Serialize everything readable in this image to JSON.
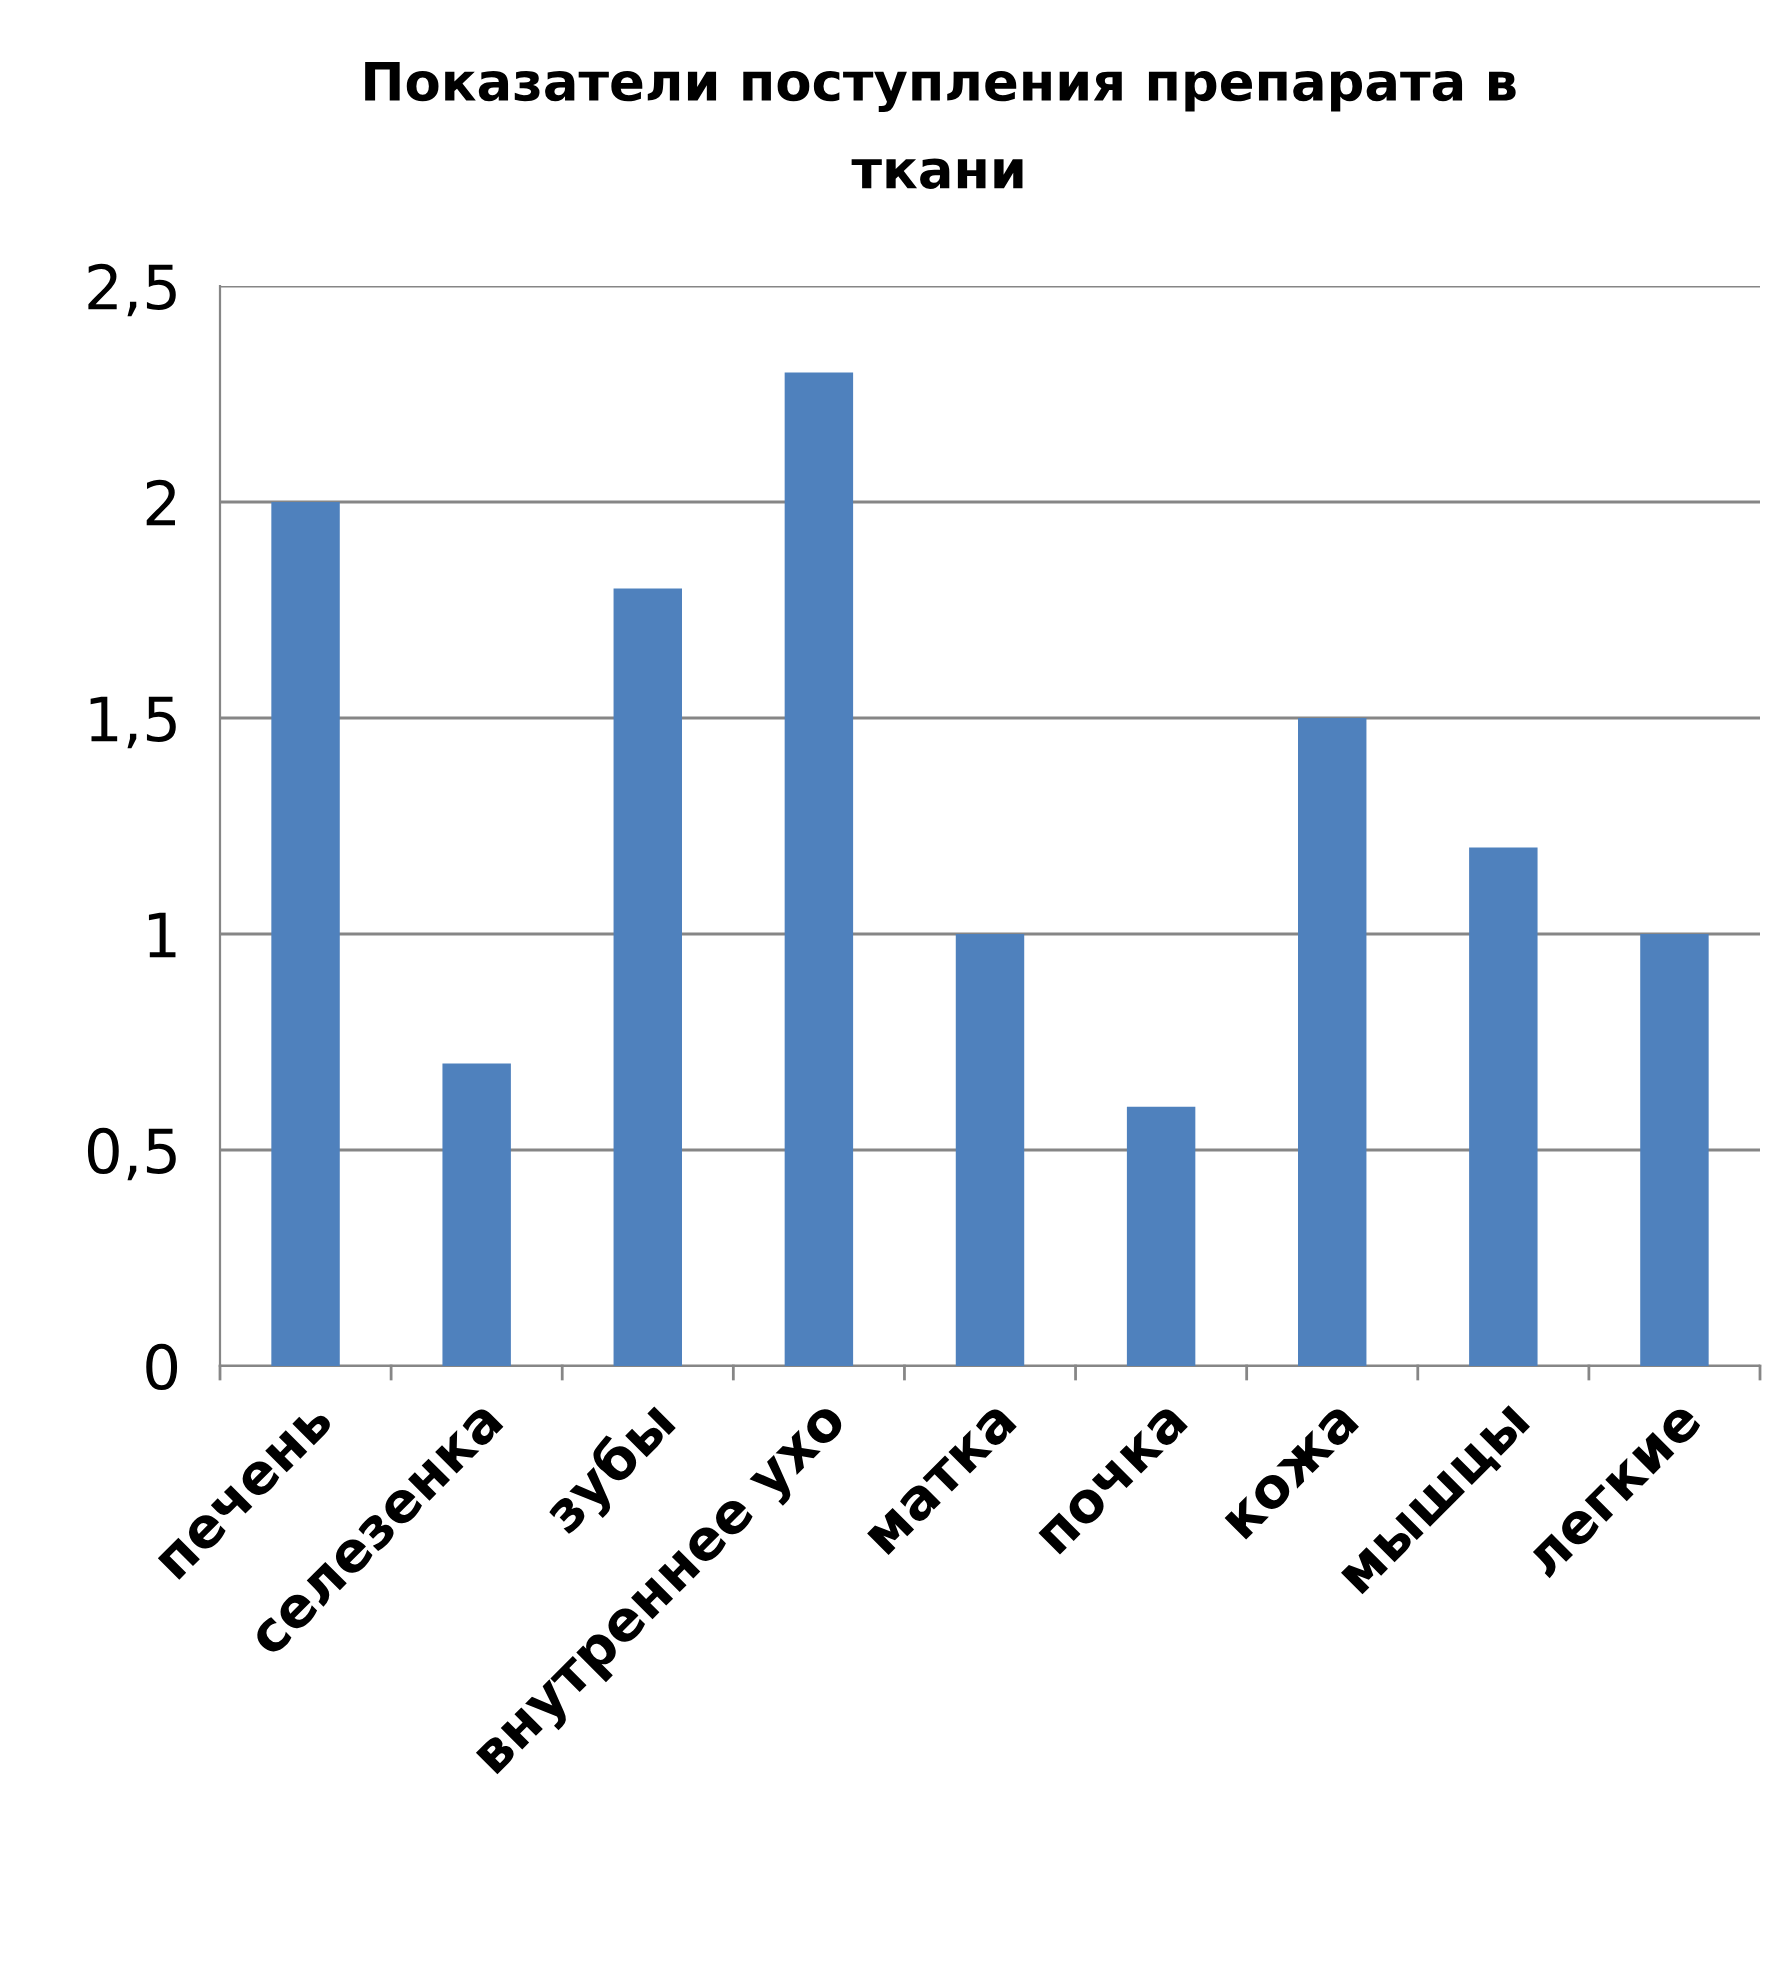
{
  "chart_data": {
    "type": "bar",
    "title": "Показатели поступления препарата в\nткани",
    "categories": [
      "печень",
      "селезенка",
      "зубы",
      "внутреннее ухо",
      "матка",
      "почка",
      "кожа",
      "мышцы",
      "легкие"
    ],
    "values": [
      2,
      0.7,
      1.8,
      2.3,
      1,
      0.6,
      1.5,
      1.2,
      1
    ],
    "color": "#4f81bd",
    "ylim": [
      0,
      2.5
    ],
    "yticks": [
      0,
      {
        "value": 0.5,
        "label": "0,5"
      },
      1,
      {
        "value": 1.5,
        "label": "1,5"
      },
      2,
      {
        "value": 2.5,
        "label": "2,5"
      }
    ],
    "grid": "y",
    "legend": false
  }
}
